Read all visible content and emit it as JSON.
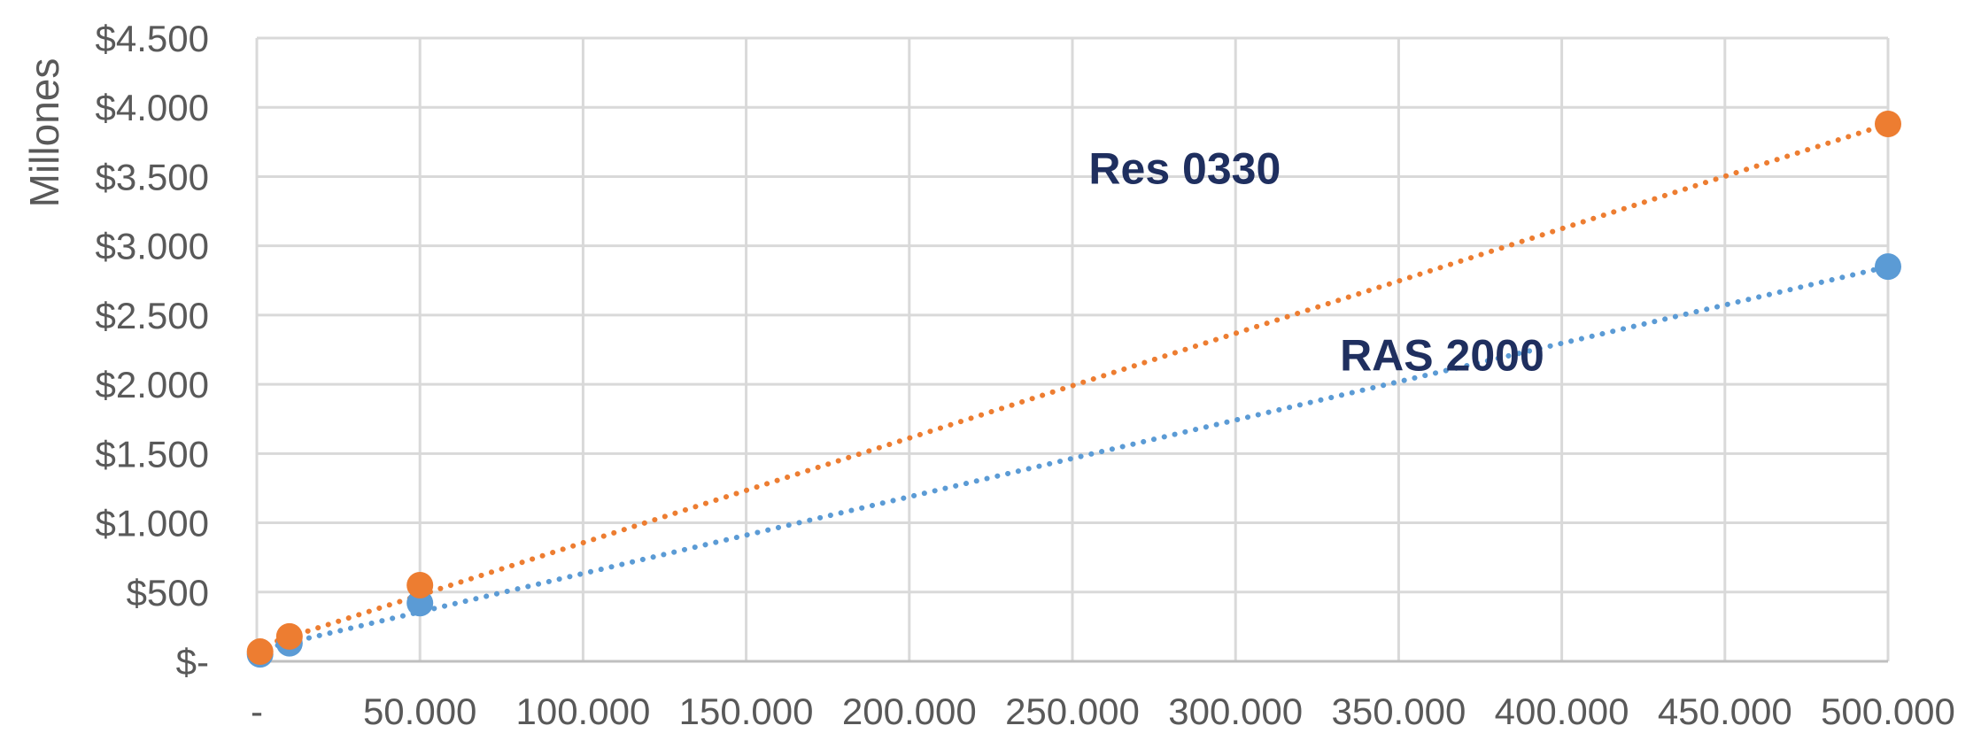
{
  "chart_data": {
    "type": "scatter",
    "title": "",
    "xlabel": "",
    "ylabel": "Millones",
    "xlim": [
      0,
      500000
    ],
    "ylim": [
      0,
      4500
    ],
    "grid": true,
    "legend": "none",
    "x_ticks": [
      {
        "value": 0,
        "label": "-"
      },
      {
        "value": 50000,
        "label": "50.000"
      },
      {
        "value": 100000,
        "label": "100.000"
      },
      {
        "value": 150000,
        "label": "150.000"
      },
      {
        "value": 200000,
        "label": "200.000"
      },
      {
        "value": 250000,
        "label": "250.000"
      },
      {
        "value": 300000,
        "label": "300.000"
      },
      {
        "value": 350000,
        "label": "350.000"
      },
      {
        "value": 400000,
        "label": "400.000"
      },
      {
        "value": 450000,
        "label": "450.000"
      },
      {
        "value": 500000,
        "label": "500.000"
      }
    ],
    "y_ticks": [
      {
        "value": 0,
        "label": "$-"
      },
      {
        "value": 500,
        "label": "$500"
      },
      {
        "value": 1000,
        "label": "$1.000"
      },
      {
        "value": 1500,
        "label": "$1.500"
      },
      {
        "value": 2000,
        "label": "$2.000"
      },
      {
        "value": 2500,
        "label": "$2.500"
      },
      {
        "value": 3000,
        "label": "$3.000"
      },
      {
        "value": 3500,
        "label": "$3.500"
      },
      {
        "value": 4000,
        "label": "$4.000"
      },
      {
        "value": 4500,
        "label": "$4.500"
      }
    ],
    "series": [
      {
        "name": "RAS 2000",
        "color": "#5b9bd5",
        "points": [
          {
            "x": 1000,
            "y": 50
          },
          {
            "x": 10000,
            "y": 130
          },
          {
            "x": 50000,
            "y": 420
          },
          {
            "x": 500000,
            "y": 2850
          }
        ],
        "trendline": {
          "x": [
            0,
            500000
          ],
          "y": [
            80,
            2850
          ]
        }
      },
      {
        "name": "Res 0330",
        "color": "#ed7d31",
        "points": [
          {
            "x": 1000,
            "y": 70
          },
          {
            "x": 10000,
            "y": 180
          },
          {
            "x": 50000,
            "y": 550
          },
          {
            "x": 500000,
            "y": 3880
          }
        ],
        "trendline": {
          "x": [
            0,
            500000
          ],
          "y": [
            100,
            3880
          ]
        }
      }
    ],
    "annotations": [
      {
        "text": "Res 0330",
        "x": 255000,
        "y": 3450
      },
      {
        "text": "RAS 2000",
        "x": 332000,
        "y": 2100
      }
    ]
  }
}
